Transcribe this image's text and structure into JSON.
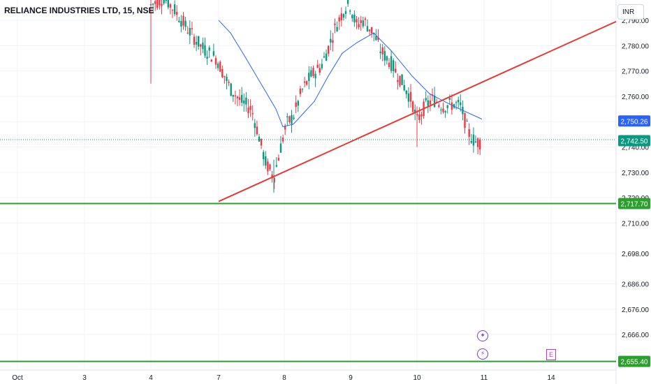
{
  "header": {
    "symbol": "RELIANCE INDUSTRIES LTD, 15, NSE"
  },
  "currency_button": {
    "label": "INR"
  },
  "markers": {
    "dividend_icon": "sparkle-icon",
    "split_icon": "lightning-icon",
    "earnings_label": "E"
  },
  "colors": {
    "up": "#089981",
    "down": "#f23645",
    "ma": "#2962ff",
    "support": "#2ca02c",
    "trendline": "#e53935",
    "accent_badge": "#2962ff"
  },
  "chart_data": {
    "type": "candlestick",
    "title": "RELIANCE INDUSTRIES LTD, 15, NSE",
    "x_ticks": [
      "Oct",
      "3",
      "4",
      "7",
      "8",
      "9",
      "10",
      "11",
      "14"
    ],
    "y_ticks": [
      "2,790.00",
      "2,780.00",
      "2,770.00",
      "2,760.00",
      "2,750.00",
      "2,740.00",
      "2,730.00",
      "2,720.00",
      "2,710.00",
      "2,698.00",
      "2,686.00",
      "2,676.00",
      "2,666.00",
      "2,655.40"
    ],
    "ylim": [
      2652,
      2798
    ],
    "last_price": "2,742.50",
    "ma_value": "2,750.26",
    "support_levels": [
      {
        "label": "2,717.70",
        "value": 2717.7
      },
      {
        "label": "2,655.40",
        "value": 2655.4
      }
    ],
    "trendline": {
      "from": {
        "day": "7",
        "value": 2718.5
      },
      "to": {
        "day": "14",
        "value": 2789.5
      }
    },
    "moving_average": [
      {
        "d": "7",
        "v": 2790
      },
      {
        "d": "7",
        "v": 2785
      },
      {
        "d": "7",
        "v": 2776
      },
      {
        "d": "8",
        "v": 2755
      },
      {
        "d": "8",
        "v": 2748
      },
      {
        "d": "8",
        "v": 2749
      },
      {
        "d": "8",
        "v": 2758
      },
      {
        "d": "9",
        "v": 2768
      },
      {
        "d": "9",
        "v": 2777
      },
      {
        "d": "9",
        "v": 2781
      },
      {
        "d": "9",
        "v": 2785
      },
      {
        "d": "10",
        "v": 2778
      },
      {
        "d": "10",
        "v": 2768
      },
      {
        "d": "10",
        "v": 2761
      },
      {
        "d": "10",
        "v": 2756
      },
      {
        "d": "11",
        "v": 2751
      }
    ],
    "grid": true,
    "legend": "none"
  }
}
